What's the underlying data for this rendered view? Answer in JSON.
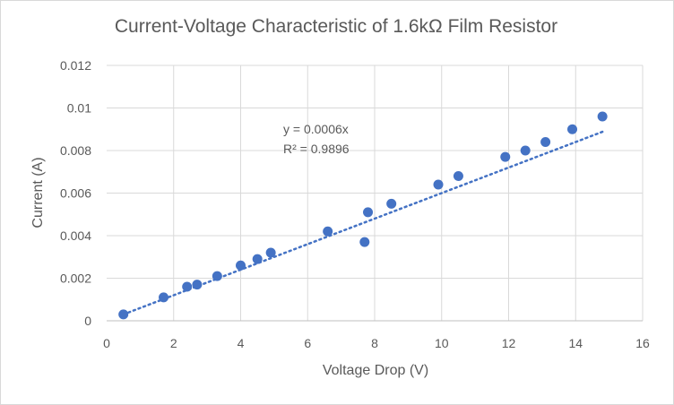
{
  "chart_data": {
    "type": "scatter",
    "title": "Current-Voltage Characteristic of 1.6kΩ Film Resistor",
    "xlabel": "Voltage Drop (V)",
    "ylabel": "Current (A)",
    "xlim": [
      0,
      16
    ],
    "ylim": [
      0,
      0.012
    ],
    "x_ticks": [
      "0",
      "2",
      "4",
      "6",
      "8",
      "10",
      "12",
      "14",
      "16"
    ],
    "y_ticks": [
      "0",
      "0.002",
      "0.004",
      "0.006",
      "0.008",
      "0.01",
      "0.012"
    ],
    "grid": "vertical and horizontal major gridlines",
    "legend": "none",
    "series": [
      {
        "points": [
          {
            "x": 0.5,
            "y": 0.0003
          },
          {
            "x": 1.7,
            "y": 0.0011
          },
          {
            "x": 2.4,
            "y": 0.0016
          },
          {
            "x": 2.7,
            "y": 0.0017
          },
          {
            "x": 3.3,
            "y": 0.0021
          },
          {
            "x": 4.0,
            "y": 0.0026
          },
          {
            "x": 4.5,
            "y": 0.0029
          },
          {
            "x": 4.9,
            "y": 0.0032
          },
          {
            "x": 6.6,
            "y": 0.0042
          },
          {
            "x": 7.7,
            "y": 0.0037
          },
          {
            "x": 7.8,
            "y": 0.0051
          },
          {
            "x": 8.5,
            "y": 0.0055
          },
          {
            "x": 9.9,
            "y": 0.0064
          },
          {
            "x": 10.5,
            "y": 0.0068
          },
          {
            "x": 11.9,
            "y": 0.0077
          },
          {
            "x": 12.5,
            "y": 0.008
          },
          {
            "x": 13.1,
            "y": 0.0084
          },
          {
            "x": 13.9,
            "y": 0.009
          },
          {
            "x": 14.8,
            "y": 0.0096
          }
        ],
        "color": "#4472c4"
      }
    ],
    "trendline": {
      "type": "linear through origin, dotted",
      "slope": 0.0006,
      "x_range": [
        0.5,
        14.8
      ],
      "equation": "y = 0.0006x",
      "r_squared": "R² = 0.9896",
      "color": "#4472c4"
    }
  }
}
